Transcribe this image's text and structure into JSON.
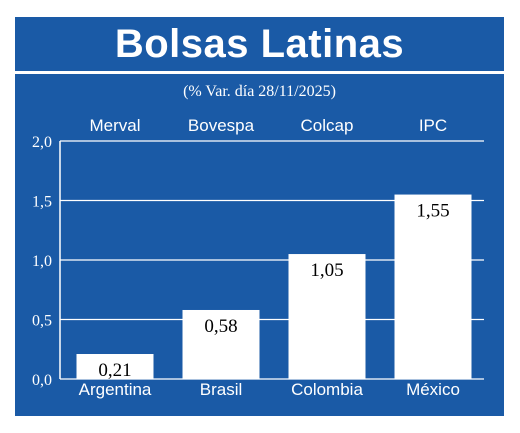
{
  "title": "Bolsas Latinas",
  "subtitle": "(% Var. día 28/11/2025)",
  "colors": {
    "background": "#1a5aa6",
    "bar": "#ffffff",
    "text": "#ffffff",
    "label_text": "#000000"
  },
  "chart_data": {
    "type": "bar",
    "title": "Bolsas Latinas",
    "subtitle": "(% Var. día 28/11/2025)",
    "categories": [
      "Argentina",
      "Brasil",
      "Colombia",
      "México"
    ],
    "index_names": [
      "Merval",
      "Bovespa",
      "Colcap",
      "IPC"
    ],
    "values": [
      0.21,
      0.58,
      1.05,
      1.55
    ],
    "value_labels": [
      "0,21",
      "0,58",
      "1,05",
      "1,55"
    ],
    "yticks": [
      "0,0",
      "0,5",
      "1,0",
      "1,5",
      "2,0"
    ],
    "ytick_values": [
      0,
      0.5,
      1.0,
      1.5,
      2.0
    ],
    "ylim": [
      0,
      2.0
    ],
    "grid": true,
    "xlabel": "",
    "ylabel": ""
  }
}
